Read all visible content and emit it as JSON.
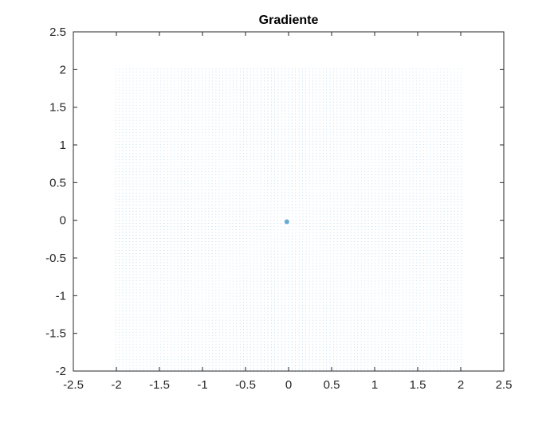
{
  "figure": {
    "background": "#ffffff"
  },
  "chart_data": {
    "type": "scatter",
    "subtype": "quiver",
    "title": "Gradiente",
    "xlabel": "",
    "ylabel": "",
    "xlim": [
      -2.5,
      2.5
    ],
    "ylim": [
      -2,
      2.5
    ],
    "xticks": [
      -2.5,
      -2,
      -1.5,
      -1,
      -0.5,
      0,
      0.5,
      1,
      1.5,
      2,
      2.5
    ],
    "yticks": [
      -2,
      -1.5,
      -1,
      -0.5,
      0,
      0.5,
      1,
      1.5,
      2,
      2.5
    ],
    "xtick_labels": [
      "-2.5",
      "-2",
      "-1.5",
      "-1",
      "-0.5",
      "0",
      "0.5",
      "1",
      "1.5",
      "2",
      "2.5"
    ],
    "ytick_labels": [
      "-2",
      "-1.5",
      "-1",
      "-0.5",
      "0",
      "0.5",
      "1",
      "1.5",
      "2",
      "2.5"
    ],
    "grid": false,
    "legend": "none",
    "field": {
      "x_range": [
        -2,
        2
      ],
      "y_range": [
        -2,
        2
      ],
      "step": 0.04,
      "center": [
        -0.02,
        -0.02
      ],
      "color": "#0072bd"
    },
    "colors": {
      "axis": "#262626",
      "arrows": "#0072bd"
    }
  }
}
